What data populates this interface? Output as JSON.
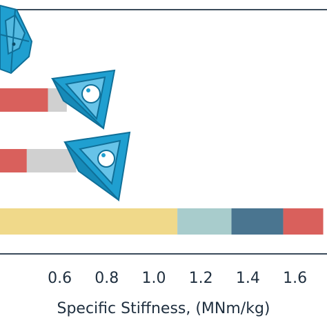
{
  "chart_data": {
    "type": "bar",
    "orientation": "horizontal",
    "stacked": true,
    "xlabel": "Specific Stiffness, (MNm/kg)",
    "ylabel": "",
    "title": "",
    "xlim": [
      0.2,
      1.72
    ],
    "x_ticks": [
      "0.6",
      "0.8",
      "1.0",
      "1.2",
      "1.4",
      "1.6"
    ],
    "colors": {
      "yellow": "#f0d98a",
      "lightblue": "#a8cccc",
      "steelblue": "#4a7590",
      "red": "#d9605c",
      "gray": "#d0d0d0",
      "icon": "#1f9fd0",
      "axis": "#3a4a5a"
    },
    "bars": [
      {
        "segments": [
          {
            "start": 0.2,
            "end": 0.55,
            "color": "red"
          },
          {
            "start": 0.55,
            "end": 0.63,
            "color": "gray"
          }
        ]
      },
      {
        "segments": [
          {
            "start": 0.2,
            "end": 0.22,
            "color": "steelblue"
          },
          {
            "start": 0.22,
            "end": 0.46,
            "color": "red"
          },
          {
            "start": 0.46,
            "end": 0.67,
            "color": "gray"
          }
        ]
      },
      {
        "segments": [
          {
            "start": 0.2,
            "end": 1.1,
            "color": "yellow"
          },
          {
            "start": 1.1,
            "end": 1.33,
            "color": "lightblue"
          },
          {
            "start": 1.33,
            "end": 1.55,
            "color": "steelblue"
          },
          {
            "start": 1.55,
            "end": 1.72,
            "color": "red"
          }
        ]
      }
    ],
    "grid": false
  }
}
